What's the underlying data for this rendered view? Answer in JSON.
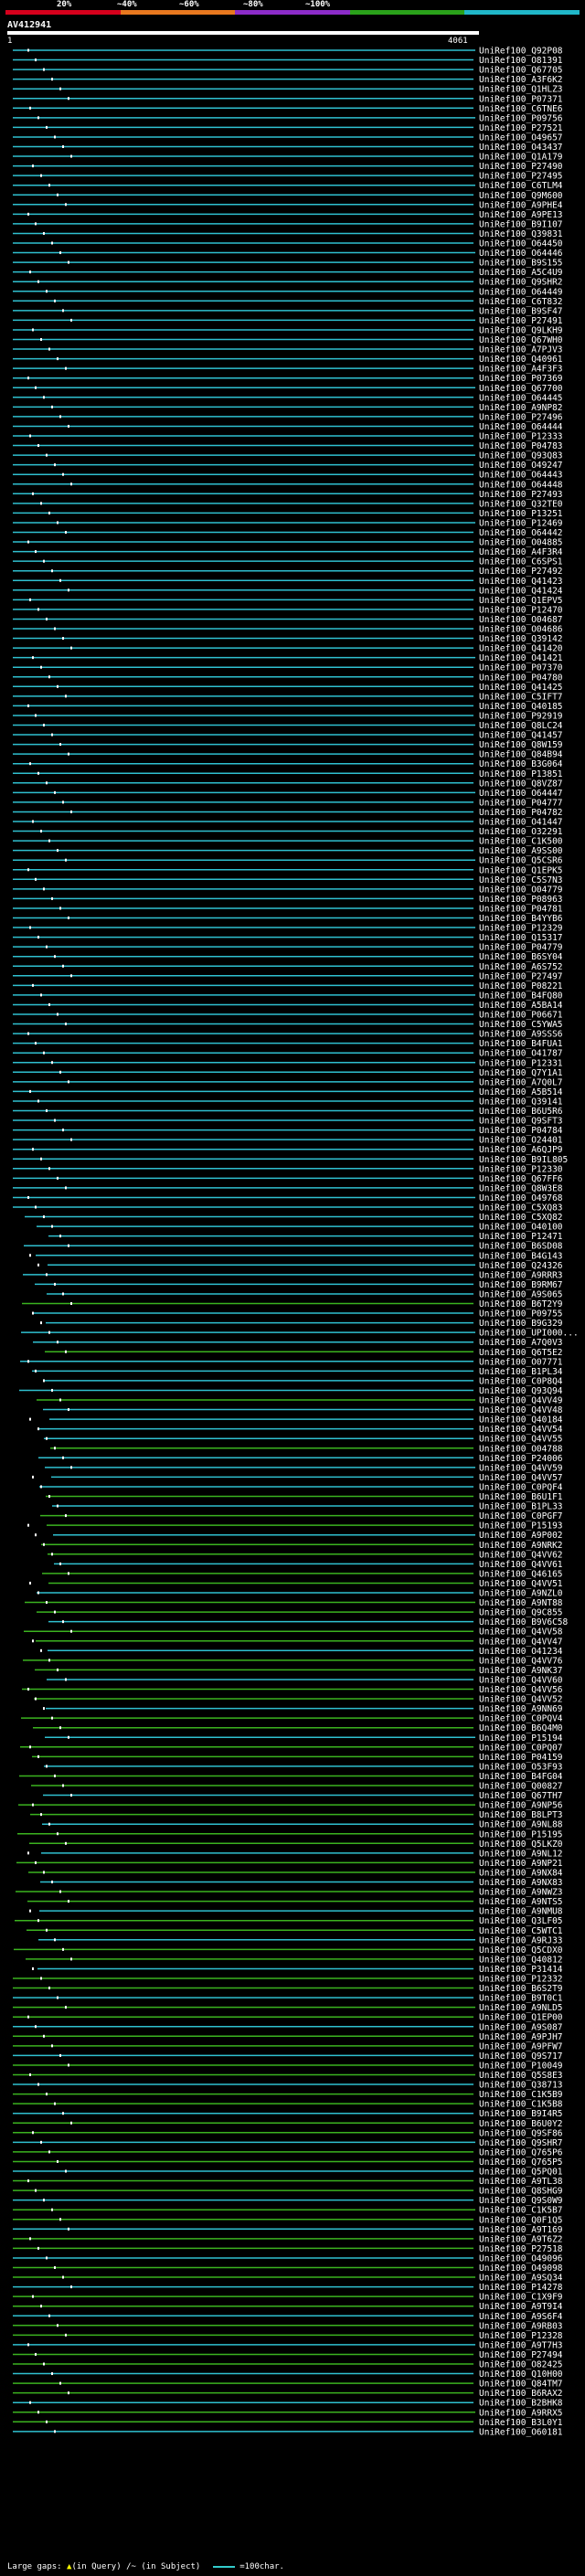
{
  "scale": {
    "ticks": [
      "20%",
      "~40%",
      "~60%",
      "~80%",
      "~100%"
    ],
    "colors": [
      "#d6001c",
      "#e8781f",
      "#8c2cc9",
      "#2aa11a",
      "#20b7c9"
    ]
  },
  "query": {
    "id": "AV412941",
    "start": "1",
    "end": "4061"
  },
  "colors": {
    "cyan": "#2fc0d0",
    "green": "#3bb31f",
    "gap": "#ffff00",
    "query": "#ffffff"
  },
  "hits": [
    "UniRef100_Q92P08",
    "UniRef100_O81391",
    "UniRef100_Q67705",
    "UniRef100_A3F6K2",
    "UniRef100_Q1HLZ3",
    "UniRef100_P07371",
    "UniRef100_C6TNE6",
    "UniRef100_P09756",
    "UniRef100_P27521",
    "UniRef100_O49657",
    "UniRef100_O43437",
    "UniRef100_Q1A179",
    "UniRef100_P27490",
    "UniRef100_P27495",
    "UniRef100_C6TLM4",
    "UniRef100_Q9M600",
    "UniRef100_A9PHE4",
    "UniRef100_A9PE13",
    "UniRef100_B9I107",
    "UniRef100_Q39831",
    "UniRef100_O64450",
    "UniRef100_O64446",
    "UniRef100_B9S155",
    "UniRef100_A5C4U9",
    "UniRef100_Q9SHR2",
    "UniRef100_O64449",
    "UniRef100_C6T832",
    "UniRef100_B9SF47",
    "UniRef100_P27491",
    "UniRef100_Q9LKH9",
    "UniRef100_Q67WH0",
    "UniRef100_A7PJV3",
    "UniRef100_Q40961",
    "UniRef100_A4F3F3",
    "UniRef100_P07369",
    "UniRef100_Q67700",
    "UniRef100_O64445",
    "UniRef100_A9NP82",
    "UniRef100_P27496",
    "UniRef100_O64444",
    "UniRef100_P12333",
    "UniRef100_P04783",
    "UniRef100_Q93Q83",
    "UniRef100_O49247",
    "UniRef100_O64443",
    "UniRef100_O64448",
    "UniRef100_P27493",
    "UniRef100_Q32TE0",
    "UniRef100_P13251",
    "UniRef100_P12469",
    "UniRef100_O64442",
    "UniRef100_O04885",
    "UniRef100_A4F3R4",
    "UniRef100_C6SPS1",
    "UniRef100_P27492",
    "UniRef100_Q41423",
    "UniRef100_Q41424",
    "UniRef100_Q1EPV5",
    "UniRef100_P12470",
    "UniRef100_O04687",
    "UniRef100_O04686",
    "UniRef100_Q39142",
    "UniRef100_Q41420",
    "UniRef100_O41421",
    "UniRef100_P07370",
    "UniRef100_P04780",
    "UniRef100_Q41425",
    "UniRef100_C5IFT7",
    "UniRef100_Q40185",
    "UniRef100_P92919",
    "UniRef100_Q8LC24",
    "UniRef100_Q41457",
    "UniRef100_Q8W159",
    "UniRef100_Q84B94",
    "UniRef100_B3G064",
    "UniRef100_P13851",
    "UniRef100_Q8VZ87",
    "UniRef100_O64447",
    "UniRef100_P04777",
    "UniRef100_P04782",
    "UniRef100_O41447",
    "UniRef100_O32291",
    "UniRef100_C1K500",
    "UniRef100_A9SS00",
    "UniRef100_Q5CSR6",
    "UniRef100_Q1EPK5",
    "UniRef100_C5S7N3",
    "UniRef100_O04779",
    "UniRef100_P08963",
    "UniRef100_P04781",
    "UniRef100_B4YYB6",
    "UniRef100_P12329",
    "UniRef100_Q15317",
    "UniRef100_P04779",
    "UniRef100_B6SY04",
    "UniRef100_A6S752",
    "UniRef100_P27497",
    "UniRef100_P08221",
    "UniRef100_B4FQ80",
    "UniRef100_A5BA14",
    "UniRef100_P06671",
    "UniRef100_C5YWA5",
    "UniRef100_A9SSS6",
    "UniRef100_B4FUA1",
    "UniRef100_O41787",
    "UniRef100_P12331",
    "UniRef100_Q7Y1A1",
    "UniRef100_A7Q0L7",
    "UniRef100_A5B514",
    "UniRef100_Q39141",
    "UniRef100_B6U5R6",
    "UniRef100_Q9SFT3",
    "UniRef100_P04784",
    "UniRef100_O24401",
    "UniRef100_A6QJP9",
    "UniRef100_B9IL805",
    "UniRef100_P12330",
    "UniRef100_Q67FF6",
    "UniRef100_Q8W3E8",
    "UniRef100_O49768",
    "UniRef100_C5XQ83",
    "UniRef100_C5XQ82",
    "UniRef100_O40100",
    "UniRef100_P12471",
    "UniRef100_B6SD08",
    "UniRef100_B4G143",
    "UniRef100_Q24326",
    "UniRef100_A9RRR3",
    "UniRef100_B9RM67",
    "UniRef100_A9S065",
    "UniRef100_B6T2Y9",
    "UniRef100_P09755",
    "UniRef100_B9G329",
    "UniRef100_UPI000...",
    "UniRef100_A7Q0V3",
    "UniRef100_Q6T5E2",
    "UniRef100_O07771",
    "UniRef100_B1PL34",
    "UniRef100_C0P8Q4",
    "UniRef100_Q93Q94",
    "UniRef100_Q4VV49",
    "UniRef100_Q4VV48",
    "UniRef100_Q40184",
    "UniRef100_Q4VV54",
    "UniRef100_Q4VV55",
    "UniRef100_O04788",
    "UniRef100_P24006",
    "UniRef100_Q4VV59",
    "UniRef100_Q4VV57",
    "UniRef100_C0PQF4",
    "UniRef100_B6U1F1",
    "UniRef100_B1PL33",
    "UniRef100_C0PGF7",
    "UniRef100_P15193",
    "UniRef100_A9P002",
    "UniRef100_A9NRK2",
    "UniRef100_Q4VV62",
    "UniRef100_Q4VV61",
    "UniRef100_Q46165",
    "UniRef100_Q4VV51",
    "UniRef100_A9NZL0",
    "UniRef100_A9NT88",
    "UniRef100_Q9C855",
    "UniRef100_B9V6C58",
    "UniRef100_Q4VV58",
    "UniRef100_Q4VV47",
    "UniRef100_O41234",
    "UniRef100_Q4VV76",
    "UniRef100_A9NK37",
    "UniRef100_Q4VV60",
    "UniRef100_Q4VV56",
    "UniRef100_Q4VV52",
    "UniRef100_A9NN69",
    "UniRef100_C0PQV4",
    "UniRef100_B6Q4M0",
    "UniRef100_P15194",
    "UniRef100_C0PQ07",
    "UniRef100_P04159",
    "UniRef100_O53F93",
    "UniRef100_B4FG04",
    "UniRef100_Q00827",
    "UniRef100_Q67TH7",
    "UniRef100_A9NP56",
    "UniRef100_B8LPT3",
    "UniRef100_A9NL88",
    "UniRef100_P15195",
    "UniRef100_Q5LKZ0",
    "UniRef100_A9NL12",
    "UniRef100_A9NP21",
    "UniRef100_A9NX84",
    "UniRef100_A9NX83",
    "UniRef100_A9NWZ3",
    "UniRef100_A9NTS5",
    "UniRef100_A9NMU8",
    "UniRef100_Q3LF05",
    "UniRef100_C5WTC1",
    "UniRef100_A9RJ33",
    "UniRef100_Q5CDX0",
    "UniRef100_Q40812",
    "UniRef100_P31414",
    "UniRef100_P12332",
    "UniRef100_B6S2T9",
    "UniRef100_B9T0C1",
    "UniRef100_A9NLD5",
    "UniRef100_Q1EP00",
    "UniRef100_A9S087",
    "UniRef100_A9PJH7",
    "UniRef100_A9PFW7",
    "UniRef100_Q9S717",
    "UniRef100_P10049",
    "UniRef100_Q5S8E3",
    "UniRef100_Q38713",
    "UniRef100_C1K5B9",
    "UniRef100_C1K5B8",
    "UniRef100_B9I4R5",
    "UniRef100_B6U0Y2",
    "UniRef100_Q9SF86",
    "UniRef100_Q9SHR7",
    "UniRef100_Q765P6",
    "UniRef100_Q765P5",
    "UniRef100_Q5PQ01",
    "UniRef100_A9TL38",
    "UniRef100_Q8SHG9",
    "UniRef100_Q9S0W9",
    "UniRef100_C1K5B7",
    "UniRef100_Q0F1Q5",
    "UniRef100_A9T169",
    "UniRef100_A9T6Z2",
    "UniRef100_P27518",
    "UniRef100_O49096",
    "UniRef100_O49098",
    "UniRef100_A9SQ34",
    "UniRef100_P14278",
    "UniRef100_C1X9F9",
    "UniRef100_A9T9I4",
    "UniRef100_A9S6F4",
    "UniRef100_A9RB03",
    "UniRef100_P12328",
    "UniRef100_A9T7H3",
    "UniRef100_P27494",
    "UniRef100_O82425",
    "UniRef100_Q10H00",
    "UniRef100_Q84TM7",
    "UniRef100_B6RAX2",
    "UniRef100_B2BHK8",
    "UniRef100_A9RRX5",
    "UniRef100_B3L0Y1",
    "UniRef100_O60181"
  ],
  "footer": {
    "text": "Large gaps: ",
    "gap_in_query": "(in Query)",
    "gap_in_subject": "/~ (in Subject)",
    "legend": "=100char."
  }
}
